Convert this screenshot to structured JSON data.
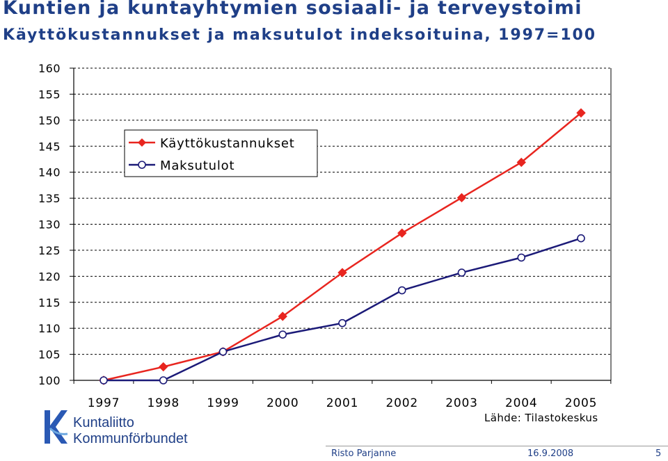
{
  "header": {
    "title": "Kuntien ja kuntayhtymien sosiaali- ja terveystoimi",
    "subtitle": "Käyttökustannukset ja maksutulot indeksoituina, 1997=100"
  },
  "chart_data": {
    "type": "line",
    "categories": [
      "1997",
      "1998",
      "1999",
      "2000",
      "2001",
      "2002",
      "2003",
      "2004",
      "2005"
    ],
    "ylim": [
      100,
      160
    ],
    "yticks": [
      "100",
      "105",
      "110",
      "115",
      "120",
      "125",
      "130",
      "135",
      "140",
      "145",
      "150",
      "155",
      "160"
    ],
    "grid": true,
    "legend_position": "top-left",
    "series": [
      {
        "name": "Käyttökustannukset",
        "color": "#e8251f",
        "marker": "diamond",
        "values": [
          100,
          102.6,
          105.5,
          112.3,
          120.7,
          128.3,
          135.1,
          141.9,
          151.4
        ]
      },
      {
        "name": "Maksutulot",
        "color": "#1b1a78",
        "marker": "circle",
        "values": [
          100,
          100,
          105.5,
          108.8,
          111.0,
          117.3,
          120.7,
          123.6,
          127.3
        ]
      }
    ]
  },
  "source": "Lähde: Tilastokeskus",
  "logo": {
    "line1": "Kuntaliitto",
    "line2": "Kommunförbundet"
  },
  "footer": {
    "author": "Risto Parjanne",
    "date": "16.9.2008",
    "page": "5"
  }
}
